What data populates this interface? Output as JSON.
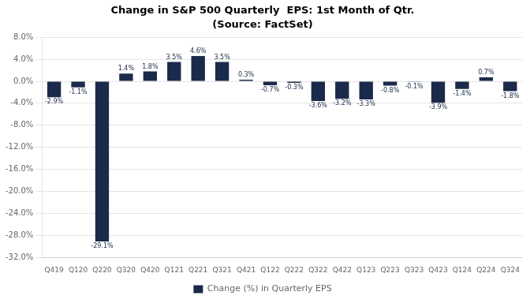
{
  "chart_data": {
    "type": "bar",
    "title": "Change in S&P 500 Quarterly  EPS: 1st Month of Qtr.",
    "subtitle": "(Source: FactSet)",
    "categories": [
      "Q419",
      "Q120",
      "Q220",
      "Q320",
      "Q420",
      "Q121",
      "Q221",
      "Q321",
      "Q421",
      "Q122",
      "Q222",
      "Q322",
      "Q422",
      "Q123",
      "Q223",
      "Q323",
      "Q423",
      "Q124",
      "Q224",
      "Q324"
    ],
    "series": [
      {
        "name": "Change (%) in Quarterly EPS",
        "color": "#1B2A4A",
        "values": [
          -2.9,
          -1.1,
          -29.1,
          1.4,
          1.8,
          3.5,
          4.6,
          3.5,
          0.3,
          -0.7,
          -0.3,
          -3.6,
          -3.2,
          -3.3,
          -0.8,
          -0.1,
          -3.9,
          -1.4,
          0.7,
          -1.8
        ],
        "value_labels": [
          "-2.9%",
          "-1.1%",
          "-29.1%",
          "1.4%",
          "1.8%",
          "3.5%",
          "4.6%",
          "3.5%",
          "0.3%",
          "-0.7%",
          "-0.3%",
          "-3.6%",
          "-3.2%",
          "-3.3%",
          "-0.8%",
          "-0.1%",
          "-3.9%",
          "-1.4%",
          "0.7%",
          "-1.8%"
        ]
      }
    ],
    "ylim": [
      -32.0,
      8.0
    ],
    "yticks": [
      {
        "value": 8.0,
        "label": "8.0%"
      },
      {
        "value": 4.0,
        "label": "4.0%"
      },
      {
        "value": 0.0,
        "label": "0.0%"
      },
      {
        "value": -4.0,
        "label": "-4.0%"
      },
      {
        "value": -8.0,
        "label": "-8.0%"
      },
      {
        "value": -12.0,
        "label": "-12.0%"
      },
      {
        "value": -16.0,
        "label": "-16.0%"
      },
      {
        "value": -20.0,
        "label": "-20.0%"
      },
      {
        "value": -24.0,
        "label": "-24.0%"
      },
      {
        "value": -28.0,
        "label": "-28.0%"
      },
      {
        "value": -32.0,
        "label": "-32.0%"
      }
    ],
    "grid": true,
    "legend": "bottom",
    "data_labels": true
  }
}
